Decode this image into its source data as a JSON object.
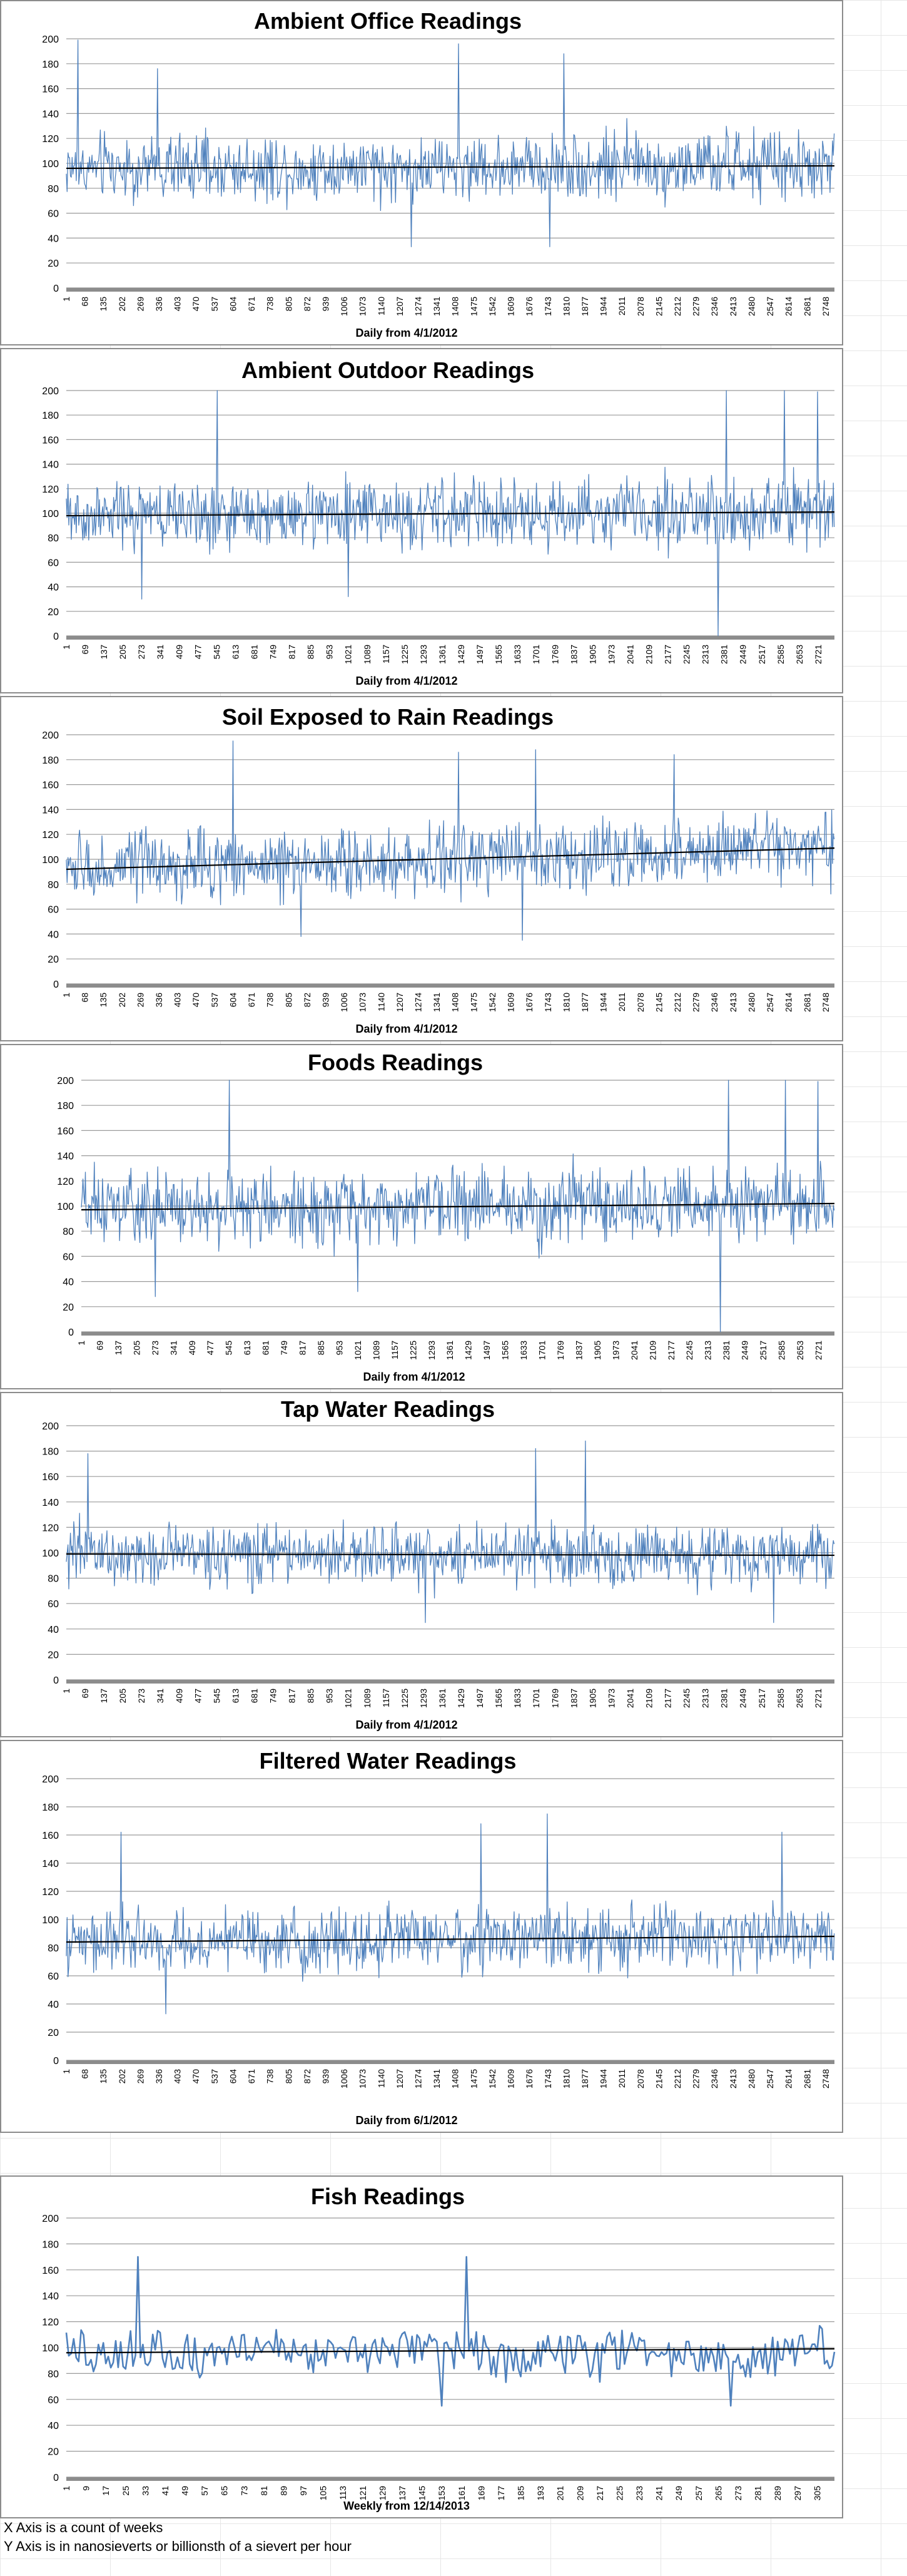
{
  "chart_data": [
    {
      "type": "line",
      "title": "Ambient Office Readings",
      "xlabel": "Daily from 4/1/2012",
      "ylabel": "",
      "ylim": [
        0,
        200
      ],
      "yticks": [
        0,
        20,
        40,
        60,
        80,
        100,
        120,
        140,
        160,
        180,
        200
      ],
      "x_tick_labels": [
        "1",
        "68",
        "135",
        "202",
        "269",
        "336",
        "403",
        "470",
        "537",
        "604",
        "671",
        "738",
        "805",
        "872",
        "939",
        "1006",
        "1073",
        "1140",
        "1207",
        "1274",
        "1341",
        "1408",
        "1475",
        "1542",
        "1609",
        "1676",
        "1743",
        "1810",
        "1877",
        "1944",
        "2011",
        "2078",
        "2145",
        "2212",
        "2279",
        "2346",
        "2413",
        "2480",
        "2547",
        "2614",
        "2681",
        "2748"
      ],
      "x_range": [
        1,
        2780
      ],
      "mean": 97,
      "spread": 24,
      "trend": [
        96,
        98
      ],
      "spikes": [
        [
          44,
          199
        ],
        [
          1420,
          196
        ],
        [
          1800,
          188
        ],
        [
          332,
          176
        ],
        [
          1749,
          33
        ],
        [
          1250,
          33
        ]
      ],
      "grid": true,
      "series_color": "#4f81bd"
    },
    {
      "type": "line",
      "title": "Ambient Outdoor Readings",
      "xlabel": "Daily from 4/1/2012",
      "ylabel": "",
      "ylim": [
        0,
        200
      ],
      "yticks": [
        0,
        20,
        40,
        60,
        80,
        100,
        120,
        140,
        160,
        180,
        200
      ],
      "x_tick_labels": [
        "1",
        "69",
        "137",
        "205",
        "273",
        "341",
        "409",
        "477",
        "545",
        "613",
        "681",
        "749",
        "817",
        "885",
        "953",
        "1021",
        "1089",
        "1157",
        "1225",
        "1293",
        "1361",
        "1429",
        "1497",
        "1565",
        "1633",
        "1701",
        "1769",
        "1837",
        "1905",
        "1973",
        "2041",
        "2109",
        "2177",
        "2245",
        "2313",
        "2381",
        "2449",
        "2517",
        "2585",
        "2653",
        "2721"
      ],
      "x_range": [
        1,
        2780
      ],
      "mean": 100,
      "spread": 26,
      "trend": [
        98,
        101
      ],
      "spikes": [
        [
          548,
          200
        ],
        [
          2390,
          200
        ],
        [
          2600,
          200
        ],
        [
          2720,
          199
        ],
        [
          2360,
          0
        ],
        [
          275,
          30
        ],
        [
          1020,
          32
        ]
      ],
      "grid": true,
      "series_color": "#4f81bd"
    },
    {
      "type": "line",
      "title": "Soil Exposed to Rain Readings",
      "xlabel": "Daily from 4/1/2012",
      "ylabel": "",
      "ylim": [
        0,
        200
      ],
      "yticks": [
        0,
        20,
        40,
        60,
        80,
        100,
        120,
        140,
        160,
        180,
        200
      ],
      "x_tick_labels": [
        "1",
        "68",
        "135",
        "202",
        "269",
        "336",
        "403",
        "470",
        "537",
        "604",
        "671",
        "738",
        "805",
        "872",
        "939",
        "1006",
        "1073",
        "1140",
        "1207",
        "1274",
        "1341",
        "1408",
        "1475",
        "1542",
        "1609",
        "1676",
        "1743",
        "1810",
        "1877",
        "1944",
        "2011",
        "2078",
        "2145",
        "2212",
        "2279",
        "2346",
        "2413",
        "2480",
        "2547",
        "2614",
        "2681",
        "2748"
      ],
      "x_range": [
        1,
        2780
      ],
      "mean": 100,
      "spread": 25,
      "trend": [
        92,
        109
      ],
      "spikes": [
        [
          604,
          195
        ],
        [
          1700,
          188
        ],
        [
          1420,
          186
        ],
        [
          2200,
          184
        ],
        [
          850,
          38
        ],
        [
          1650,
          35
        ]
      ],
      "grid": true,
      "series_color": "#4f81bd"
    },
    {
      "type": "line",
      "title": "Foods Readings",
      "xlabel": "Daily from 4/1/2012",
      "ylabel": "",
      "ylim": [
        0,
        200
      ],
      "yticks": [
        0,
        20,
        40,
        60,
        80,
        100,
        120,
        140,
        160,
        180,
        200
      ],
      "x_tick_labels": [
        "1",
        "69",
        "137",
        "205",
        "273",
        "341",
        "409",
        "477",
        "545",
        "613",
        "681",
        "749",
        "817",
        "885",
        "953",
        "1021",
        "1089",
        "1157",
        "1225",
        "1293",
        "1361",
        "1429",
        "1497",
        "1565",
        "1633",
        "1701",
        "1769",
        "1837",
        "1905",
        "1973",
        "2041",
        "2109",
        "2177",
        "2245",
        "2313",
        "2381",
        "2449",
        "2517",
        "2585",
        "2653",
        "2721"
      ],
      "x_range": [
        1,
        2780
      ],
      "mean": 100,
      "spread": 26,
      "trend": [
        97,
        102
      ],
      "spikes": [
        [
          548,
          200
        ],
        [
          2390,
          200
        ],
        [
          2600,
          200
        ],
        [
          2720,
          199
        ],
        [
          2360,
          0
        ],
        [
          275,
          28
        ],
        [
          1020,
          32
        ]
      ],
      "grid": true,
      "series_color": "#4f81bd"
    },
    {
      "type": "line",
      "title": "Tap Water Readings",
      "xlabel": "Daily from 4/1/2012",
      "ylabel": "",
      "ylim": [
        0,
        200
      ],
      "yticks": [
        0,
        20,
        40,
        60,
        80,
        100,
        120,
        140,
        160,
        180,
        200
      ],
      "x_tick_labels": [
        "1",
        "69",
        "137",
        "205",
        "273",
        "341",
        "409",
        "477",
        "545",
        "613",
        "681",
        "749",
        "817",
        "885",
        "953",
        "1021",
        "1089",
        "1157",
        "1225",
        "1293",
        "1361",
        "1429",
        "1497",
        "1565",
        "1633",
        "1701",
        "1769",
        "1837",
        "1905",
        "1973",
        "2041",
        "2109",
        "2177",
        "2245",
        "2313",
        "2381",
        "2449",
        "2517",
        "2585",
        "2653",
        "2721"
      ],
      "x_range": [
        1,
        2780
      ],
      "mean": 99,
      "spread": 22,
      "trend": [
        99,
        98
      ],
      "spikes": [
        [
          1880,
          188
        ],
        [
          1700,
          182
        ],
        [
          80,
          178
        ],
        [
          1300,
          45
        ],
        [
          2560,
          45
        ]
      ],
      "grid": true,
      "series_color": "#4f81bd"
    },
    {
      "type": "line",
      "title": "Filtered Water Readings",
      "xlabel": "Daily from 6/1/2012",
      "ylabel": "",
      "ylim": [
        0,
        200
      ],
      "yticks": [
        0,
        20,
        40,
        60,
        80,
        100,
        120,
        140,
        160,
        180,
        200
      ],
      "x_tick_labels": [
        "1",
        "68",
        "135",
        "202",
        "269",
        "336",
        "403",
        "470",
        "537",
        "604",
        "671",
        "738",
        "805",
        "872",
        "939",
        "1006",
        "1073",
        "1140",
        "1207",
        "1274",
        "1341",
        "1408",
        "1475",
        "1542",
        "1609",
        "1676",
        "1743",
        "1810",
        "1877",
        "1944",
        "2011",
        "2078",
        "2145",
        "2212",
        "2279",
        "2346",
        "2413",
        "2480",
        "2547",
        "2614",
        "2681",
        "2748"
      ],
      "x_range": [
        1,
        2780
      ],
      "mean": 86,
      "spread": 20,
      "trend": [
        84,
        88
      ],
      "spikes": [
        [
          1740,
          175
        ],
        [
          2590,
          162
        ],
        [
          200,
          162
        ],
        [
          1500,
          168
        ],
        [
          360,
          33
        ]
      ],
      "grid": true,
      "series_color": "#4f81bd"
    },
    {
      "type": "line",
      "title": "Fish Readings",
      "xlabel": "Weekly from 12/14/2013",
      "ylabel": "",
      "ylim": [
        0,
        200
      ],
      "yticks": [
        0,
        20,
        40,
        60,
        80,
        100,
        120,
        140,
        160,
        180,
        200
      ],
      "x_tick_labels": [
        "1",
        "9",
        "17",
        "25",
        "33",
        "41",
        "49",
        "57",
        "65",
        "73",
        "81",
        "89",
        "97",
        "105",
        "113",
        "121",
        "129",
        "137",
        "145",
        "153",
        "161",
        "169",
        "177",
        "185",
        "193",
        "201",
        "209",
        "217",
        "225",
        "233",
        "241",
        "249",
        "257",
        "265",
        "273",
        "281",
        "289",
        "297",
        "305"
      ],
      "x_range": [
        1,
        312
      ],
      "mean": 97,
      "spread": 17,
      "trend": [
        96,
        99
      ],
      "spikes": [
        [
          30,
          170
        ],
        [
          163,
          170
        ],
        [
          153,
          55
        ],
        [
          270,
          55
        ]
      ],
      "grid": true,
      "series_color": "#4f81bd"
    }
  ],
  "footnotes": [
    "X Axis is a count of weeks",
    "Y Axis is in nanosieverts or billionsth of a sievert per hour"
  ]
}
